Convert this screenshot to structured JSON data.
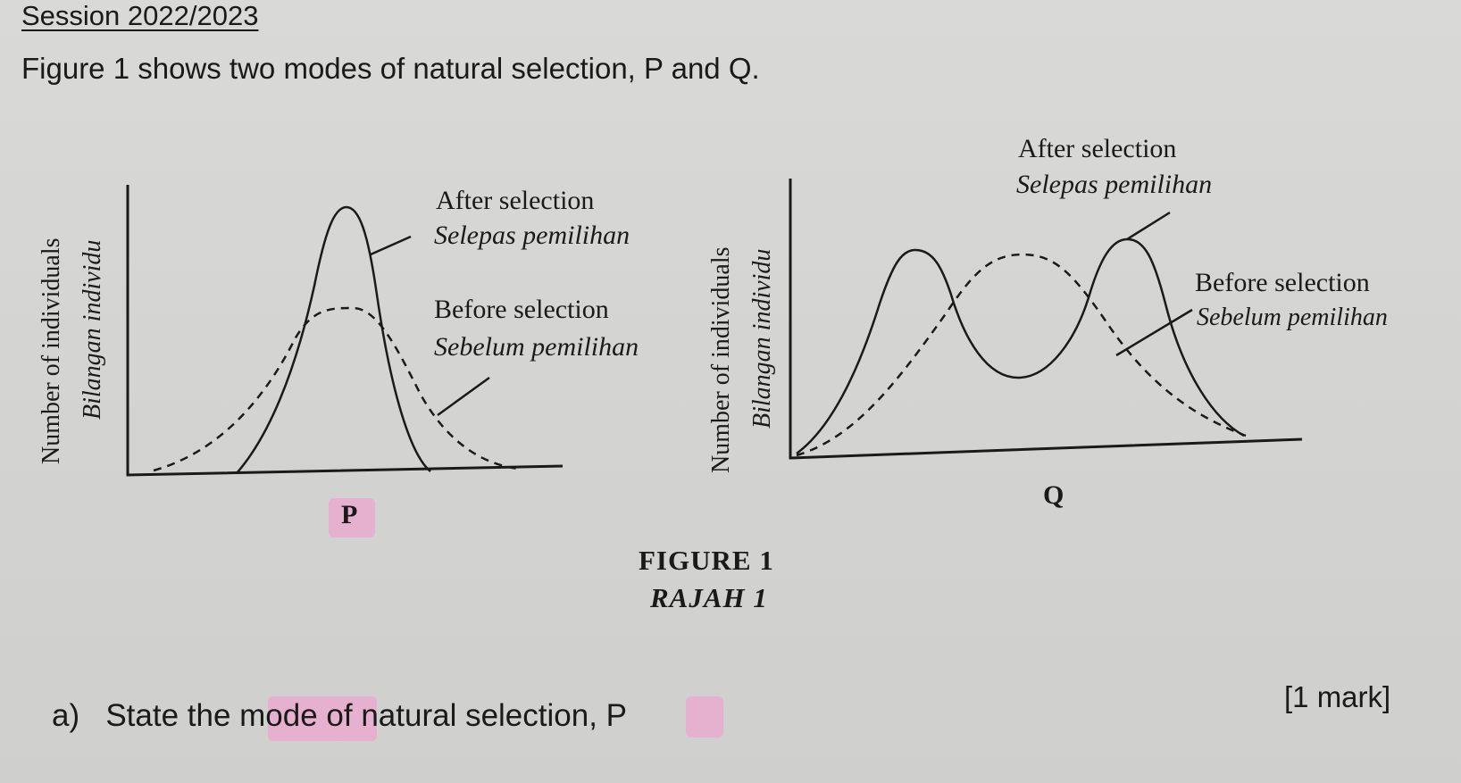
{
  "header": {
    "session": "Session 2022/2023",
    "intro": "Figure 1 shows two modes of natural selection, P and Q."
  },
  "graph_p": {
    "ylabel_en": "Number of individuals",
    "ylabel_ms": "Bilangan individu",
    "after_en": "After selection",
    "after_ms": "Selepas pemilihan",
    "before_en": "Before selection",
    "before_ms": "Sebelum pemilihan",
    "letter": "P"
  },
  "graph_q": {
    "ylabel_en": "Number of individuals",
    "ylabel_ms": "Bilangan individu",
    "after_en": "After selection",
    "after_ms": "Selepas pemilihan",
    "before_en": "Before selection",
    "before_ms": "Sebelum pemilihan",
    "letter": "Q"
  },
  "figure": {
    "title_en": "FIGURE 1",
    "title_ms": "RAJAH 1"
  },
  "question": {
    "part": "a)",
    "text": "State the mode of natural selection, P",
    "marks": "[1 mark]"
  },
  "colors": {
    "ink": "#1a1a1a",
    "paper": "#d6d6d4",
    "highlight": "#e6b0cf"
  }
}
